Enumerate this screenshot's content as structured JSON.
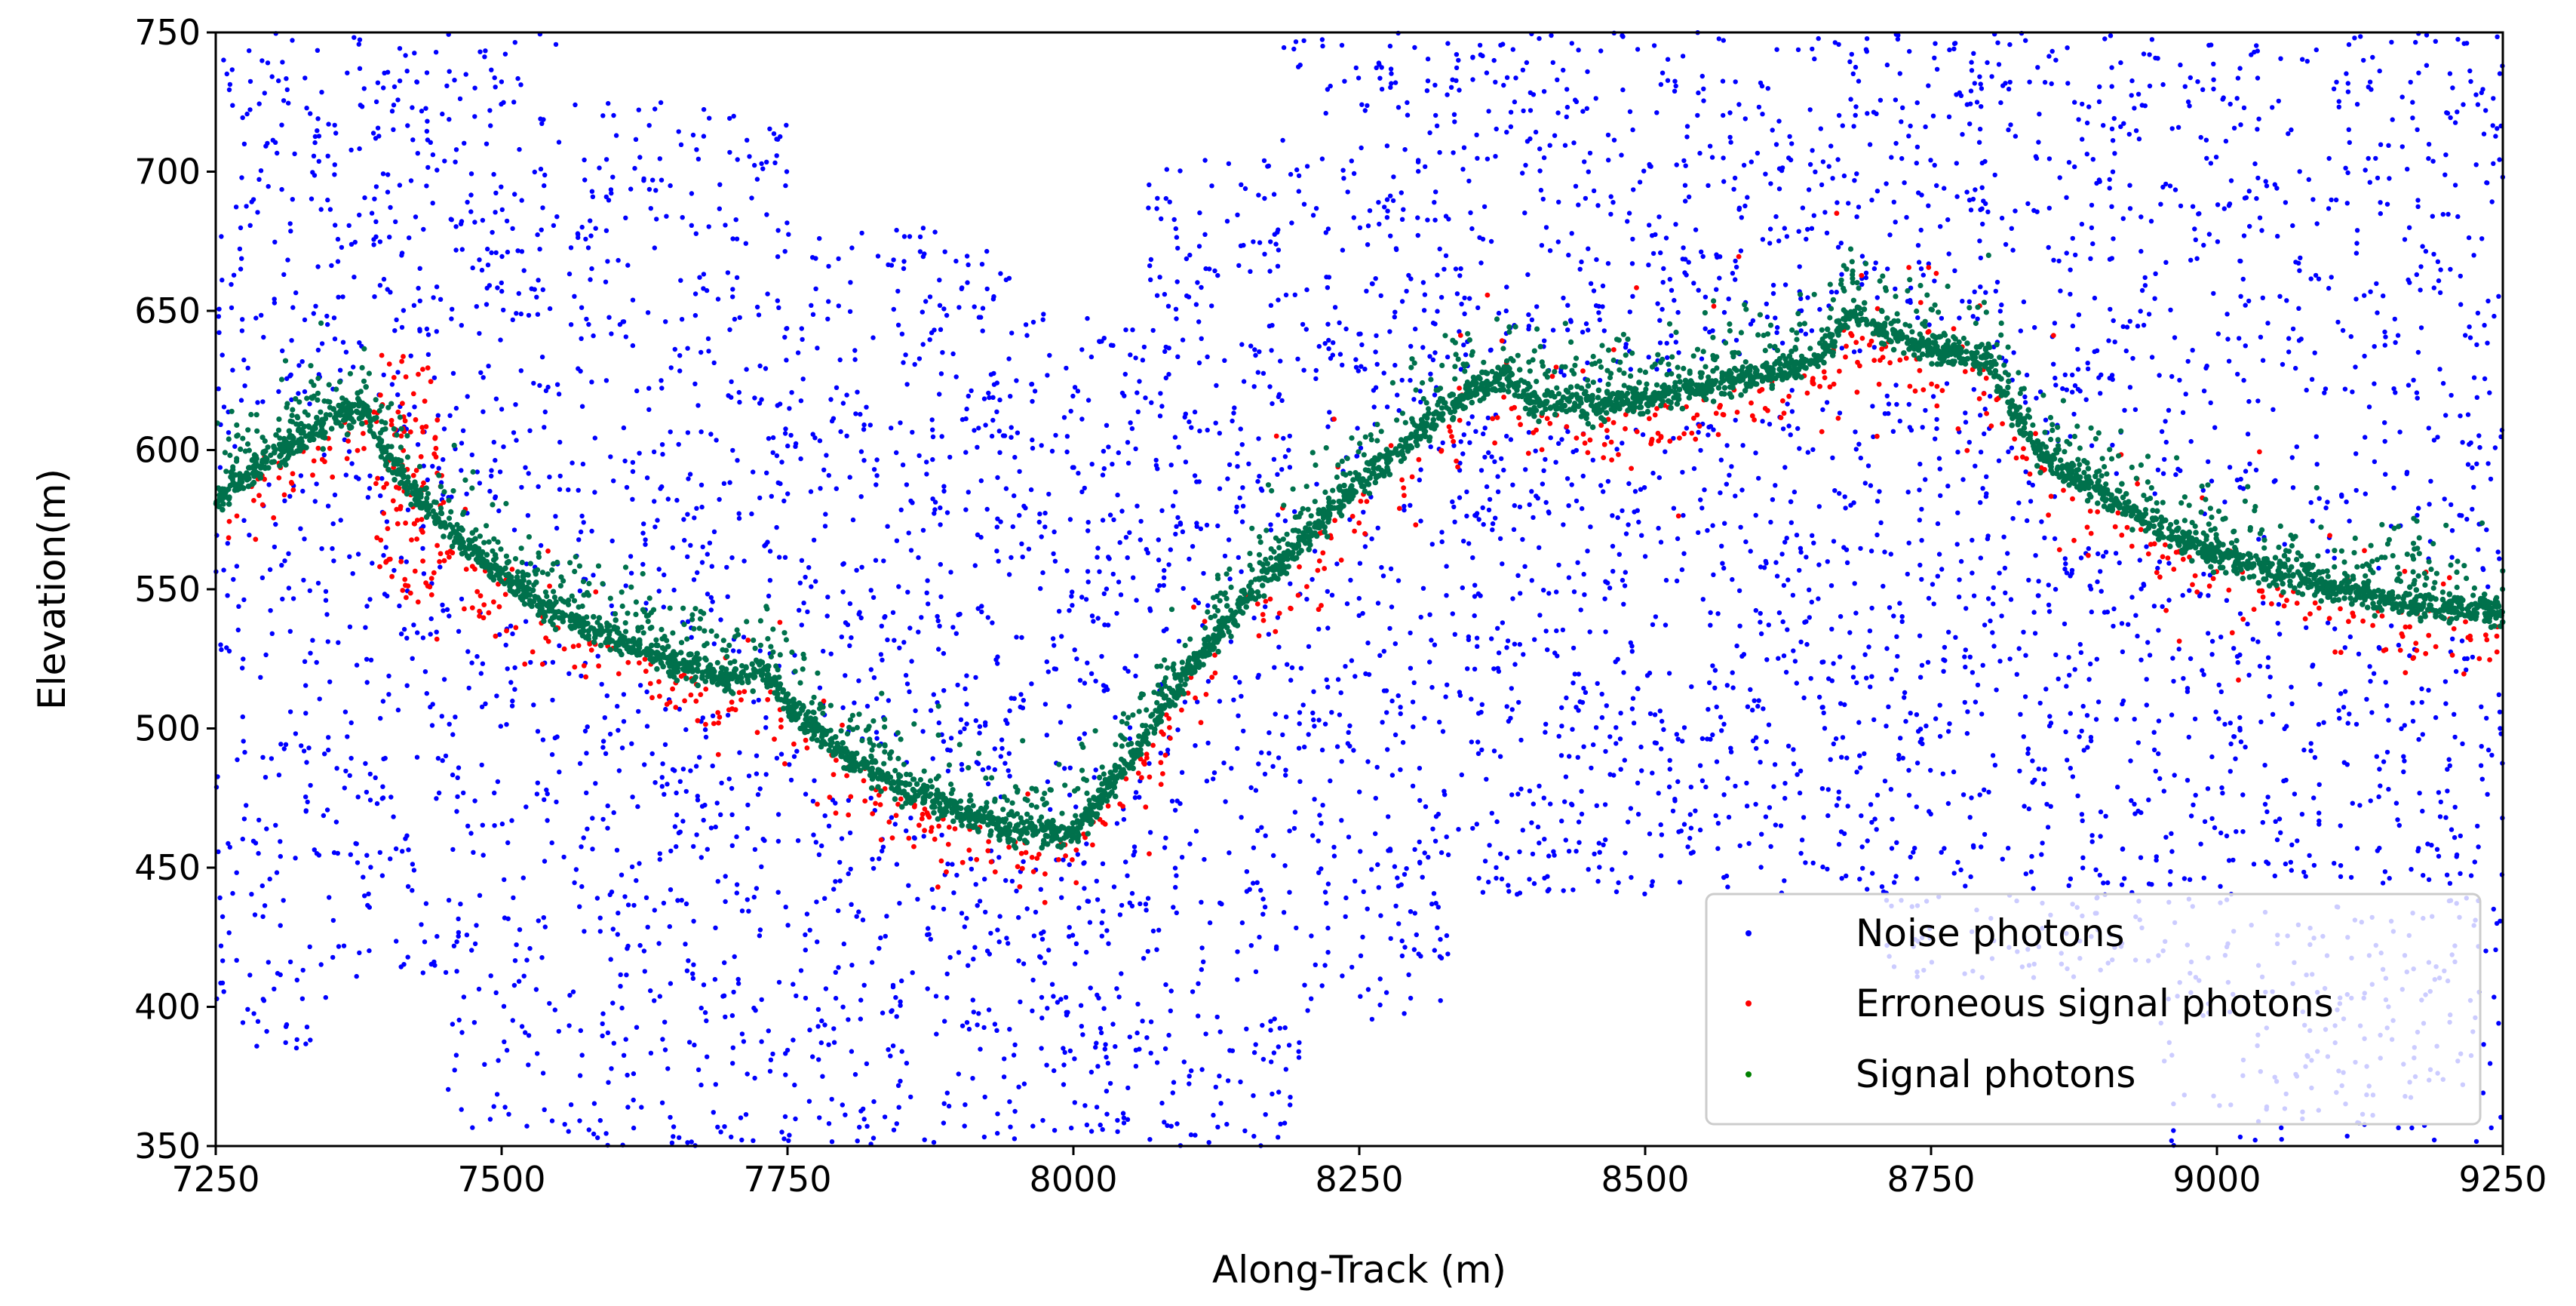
{
  "chart_data": {
    "type": "scatter",
    "title": "",
    "xlabel": "Along-Track (m)",
    "ylabel": "Elevation(m)",
    "xlim": [
      7250,
      9250
    ],
    "ylim": [
      350,
      750
    ],
    "xticks": [
      7250,
      7500,
      7750,
      8000,
      8250,
      8500,
      8750,
      9000,
      9250
    ],
    "yticks": [
      350,
      400,
      450,
      500,
      550,
      600,
      650,
      700,
      750
    ],
    "grid": false,
    "legend_position": "lower-right",
    "surface_profile": {
      "x": [
        7250,
        7300,
        7350,
        7380,
        7400,
        7450,
        7500,
        7550,
        7600,
        7650,
        7700,
        7730,
        7750,
        7800,
        7850,
        7900,
        7950,
        8000,
        8050,
        8100,
        8150,
        8200,
        8250,
        8300,
        8350,
        8380,
        8400,
        8450,
        8500,
        8550,
        8600,
        8650,
        8680,
        8700,
        8750,
        8800,
        8830,
        8850,
        8900,
        8950,
        9000,
        9050,
        9100,
        9150,
        9200,
        9250
      ],
      "y": [
        582,
        598,
        610,
        615,
        596,
        572,
        555,
        540,
        532,
        524,
        517,
        520,
        508,
        490,
        478,
        470,
        463,
        462,
        488,
        520,
        546,
        567,
        588,
        605,
        622,
        625,
        617,
        616,
        618,
        622,
        627,
        632,
        650,
        645,
        636,
        632,
        608,
        596,
        584,
        572,
        562,
        556,
        550,
        546,
        543,
        541
      ]
    },
    "series": [
      {
        "name": "Noise photons",
        "color": "#0000ff"
      },
      {
        "name": "Erroneous signal photons",
        "color": "#ff0000"
      },
      {
        "name": "Signal photons",
        "color": "#008000"
      }
    ]
  }
}
